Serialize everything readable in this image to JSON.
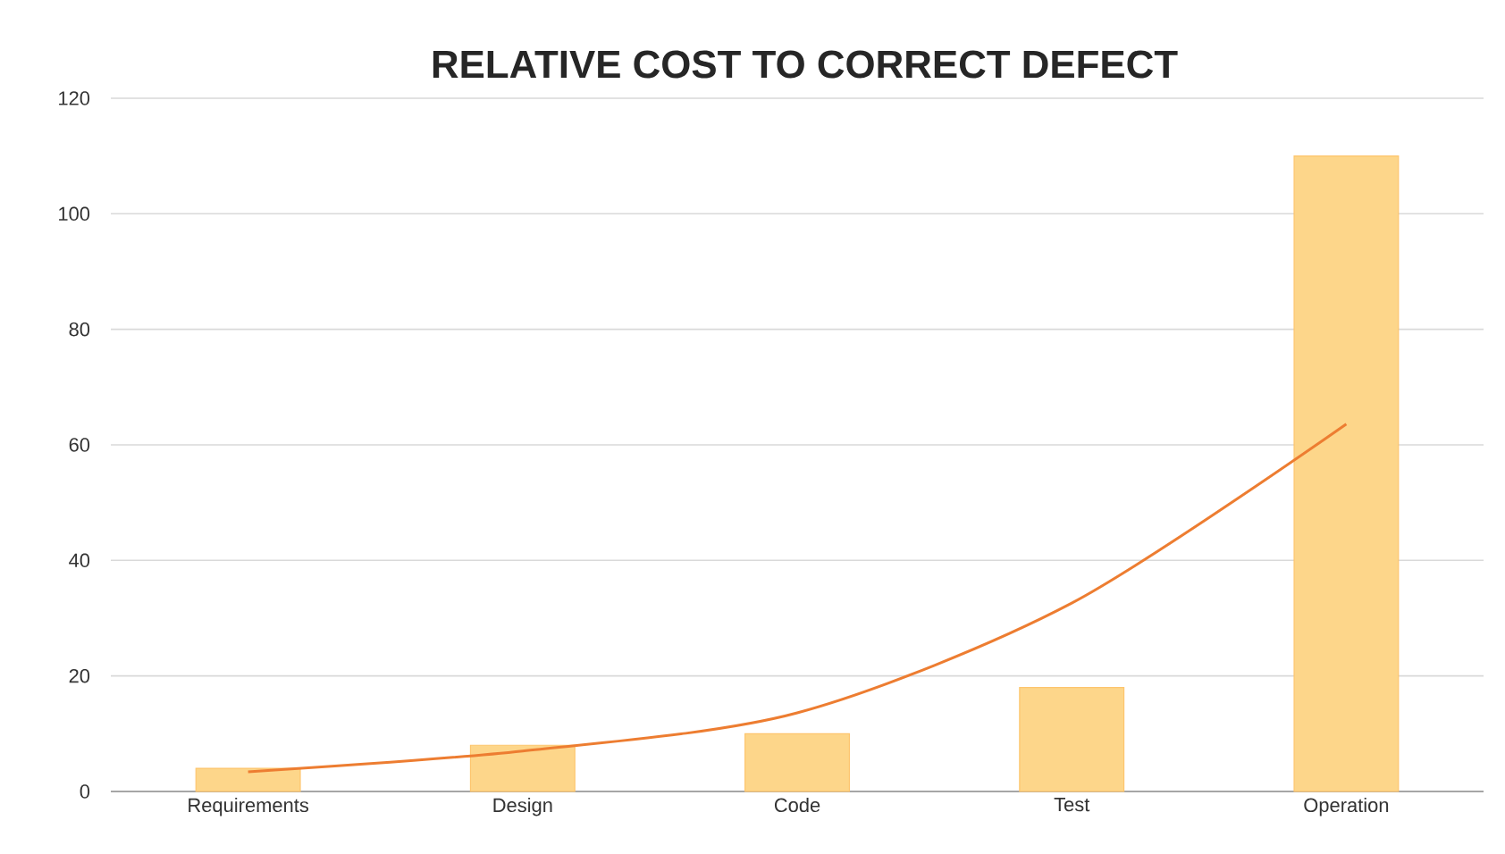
{
  "chart_data": {
    "type": "bar",
    "title": "RELATIVE COST TO CORRECT DEFECT",
    "categories": [
      "Requirements",
      "Design",
      "Code",
      "Test",
      "Operation"
    ],
    "series": [
      {
        "color": "#fdd68a",
        "values": [
          4,
          8,
          10,
          18,
          110
        ]
      },
      {
        "type": "line",
        "color": "#ed7d31",
        "values": [
          3.4,
          7,
          13.6,
          32.6,
          63.6
        ]
      }
    ],
    "ylim": [
      0,
      120
    ],
    "yticks": [
      0,
      20,
      40,
      60,
      80,
      100,
      120
    ],
    "grid": "y"
  }
}
